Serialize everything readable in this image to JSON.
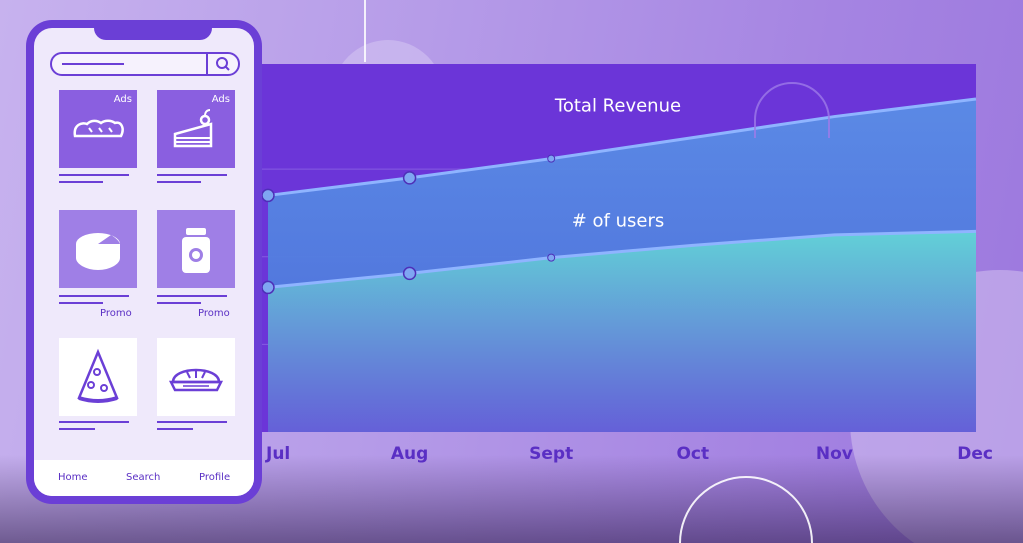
{
  "chart_data": {
    "type": "area",
    "categories": [
      "Jul",
      "Aug",
      "Sept",
      "Oct",
      "Nov",
      "Dec"
    ],
    "series": [
      {
        "name": "Total Revenue",
        "values": [
          270,
          290,
          312,
          336,
          360,
          380
        ]
      },
      {
        "name": "# of users",
        "values": [
          165,
          181,
          199,
          213,
          225,
          229
        ]
      }
    ],
    "ylim": [
      0,
      420
    ],
    "grid": true,
    "colors": {
      "plot_background": "#6b35d8",
      "revenue_fill": "#4f7ee0",
      "users_fill": "#5ecfd4",
      "line": "#8fb4ff",
      "axis_text": "#5a2fc4"
    }
  },
  "phone": {
    "search": {
      "icon": "search-icon"
    },
    "tiles": [
      {
        "icon": "bread-icon",
        "badge": "Ads"
      },
      {
        "icon": "cake-icon",
        "badge": "Ads"
      },
      {
        "icon": "cheese-icon",
        "badge": "Promo"
      },
      {
        "icon": "jar-icon",
        "badge": "Promo"
      },
      {
        "icon": "pizza-slice-icon",
        "badge": ""
      },
      {
        "icon": "pie-icon",
        "badge": ""
      }
    ],
    "nav": {
      "home": "Home",
      "search": "Search",
      "profile": "Profile"
    },
    "colors": {
      "frame": "#6b3fd6",
      "screen": "#efe9fb"
    }
  }
}
